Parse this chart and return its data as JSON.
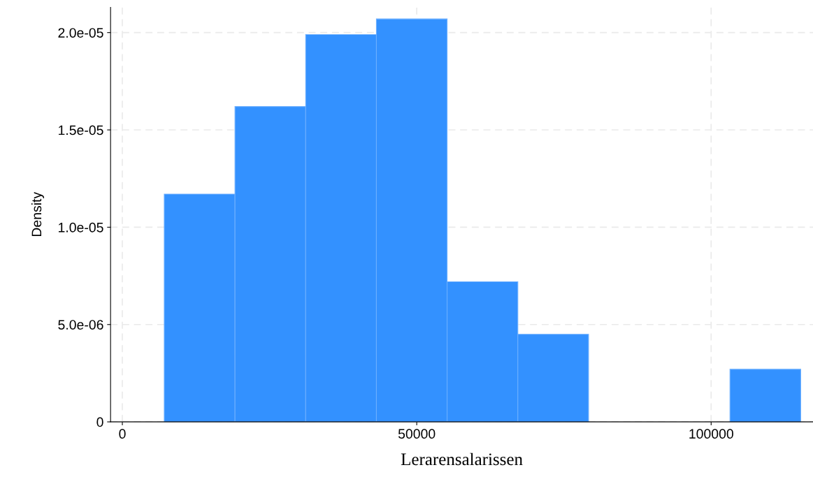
{
  "chart_data": {
    "type": "histogram",
    "xlabel": "Lerarensalarissen",
    "ylabel": "Density",
    "bins": [
      7120,
      19130,
      31140,
      43150,
      55160,
      67170,
      79180,
      91190,
      103200,
      115210
    ],
    "values": [
      1.17e-05,
      1.62e-05,
      1.99e-05,
      2.07e-05,
      7.2e-06,
      4.5e-06,
      0,
      0,
      2.7e-06
    ],
    "color": "#3391ff",
    "xlim": [
      -2000,
      117300
    ],
    "ylim": [
      0,
      2.13e-05
    ],
    "xticks": [
      0,
      50000,
      100000
    ],
    "yticks": [
      {
        "value": 0,
        "label": "0"
      },
      {
        "value": 5e-06,
        "label": "5.0e-06"
      },
      {
        "value": 1e-05,
        "label": "1.0e-05"
      },
      {
        "value": 1.5e-05,
        "label": "1.5e-05"
      },
      {
        "value": 2e-05,
        "label": "2.0e-05"
      }
    ],
    "grid": true
  }
}
